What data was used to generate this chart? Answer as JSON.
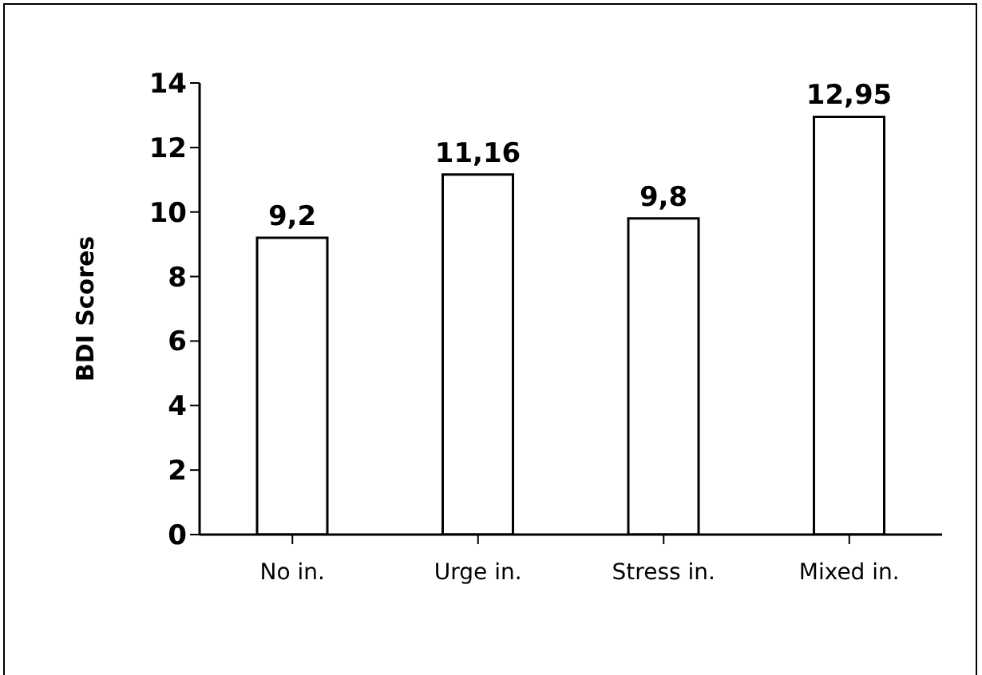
{
  "chart_data": {
    "type": "bar",
    "ylabel": "BDI  Scores",
    "categories": [
      "No in.",
      "Urge in.",
      "Stress in.",
      "Mixed in."
    ],
    "values": [
      9.2,
      11.16,
      9.8,
      12.95
    ],
    "value_labels": [
      "9,2",
      "11,16",
      "9,8",
      "12,95"
    ],
    "color": "#ffffff",
    "ylim": [
      0,
      14
    ],
    "yticks": [
      0,
      2,
      4,
      6,
      8,
      10,
      12,
      14
    ],
    "grid": false,
    "legend": false
  }
}
